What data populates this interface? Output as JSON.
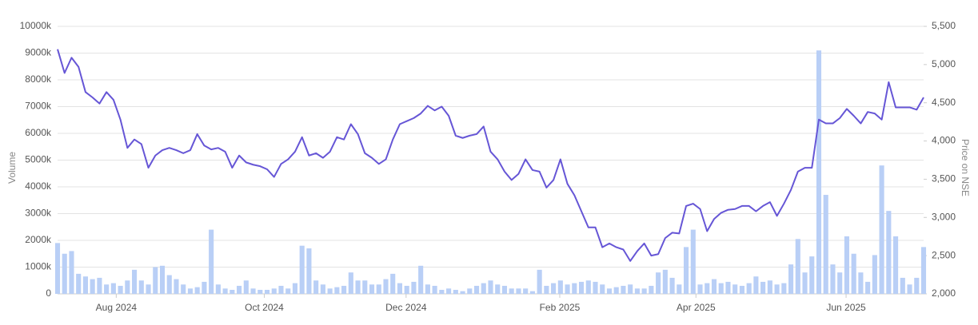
{
  "chart_data": {
    "type": "combo",
    "y_label": "Volume",
    "y2_label": "Price on NSE",
    "xlim": [
      0,
      124
    ],
    "xticks": [
      {
        "value": 8.4,
        "label": "Aug 2024"
      },
      {
        "value": 29.6,
        "label": "Oct 2024"
      },
      {
        "value": 49.9,
        "label": "Dec 2024"
      },
      {
        "value": 71.9,
        "label": "Feb 2025"
      },
      {
        "value": 91.4,
        "label": "Apr 2025"
      },
      {
        "value": 112.9,
        "label": "Jun 2025"
      }
    ],
    "ylim": [
      0,
      10000
    ],
    "yticks": [
      0,
      {
        "value": 1000,
        "label": "1000k"
      },
      {
        "value": 2000,
        "label": "2000k"
      },
      {
        "value": 3000,
        "label": "3000k"
      },
      {
        "value": 4000,
        "label": "4000k"
      },
      {
        "value": 5000,
        "label": "5000k"
      },
      {
        "value": 6000,
        "label": "6000k"
      },
      {
        "value": 7000,
        "label": "7000k"
      },
      {
        "value": 8000,
        "label": "8000k"
      },
      {
        "value": 9000,
        "label": "9000k"
      },
      {
        "value": 10000,
        "label": "10000k"
      }
    ],
    "y2lim": [
      2000,
      5500
    ],
    "y2ticks": [
      {
        "value": 2000,
        "label": "2,000"
      },
      {
        "value": 2500,
        "label": "2,500"
      },
      {
        "value": 3000,
        "label": "3,000"
      },
      {
        "value": 3500,
        "label": "3,500"
      },
      {
        "value": 4000,
        "label": "4,000"
      },
      {
        "value": 4500,
        "label": "4,500"
      },
      {
        "value": 5000,
        "label": "5,000"
      },
      {
        "value": 5500,
        "label": "5,500"
      }
    ],
    "grid": true,
    "series": [
      {
        "type": "bar",
        "color": "#b9cff6",
        "values": [
          1900,
          1500,
          1600,
          750,
          650,
          550,
          600,
          350,
          400,
          300,
          500,
          900,
          500,
          350,
          1000,
          1050,
          700,
          550,
          350,
          200,
          250,
          450,
          2400,
          350,
          200,
          150,
          300,
          500,
          200,
          150,
          150,
          200,
          300,
          200,
          400,
          1800,
          1700,
          500,
          350,
          200,
          250,
          300,
          800,
          500,
          500,
          350,
          350,
          550,
          750,
          400,
          300,
          450,
          1050,
          350,
          300,
          150,
          200,
          150,
          100,
          200,
          300,
          400,
          500,
          350,
          300,
          200,
          200,
          200,
          100,
          900,
          300,
          400,
          500,
          350,
          400,
          450,
          500,
          450,
          350,
          200,
          250,
          300,
          350,
          200,
          200,
          300,
          800,
          900,
          600,
          350,
          1750,
          2400,
          350,
          400,
          550,
          400,
          450,
          350,
          300,
          400,
          650,
          450,
          500,
          350,
          400,
          1100,
          2050,
          800,
          1400,
          9100,
          3700,
          1100,
          800,
          2150,
          1500,
          800,
          450,
          1450,
          4800,
          3100,
          2150,
          600,
          350,
          600,
          1750
        ]
      },
      {
        "type": "line",
        "axis": "y2",
        "color": "#6656d6",
        "values": [
          5200,
          4890,
          5090,
          4970,
          4640,
          4570,
          4490,
          4640,
          4540,
          4280,
          3910,
          4020,
          3960,
          3650,
          3810,
          3880,
          3910,
          3880,
          3840,
          3880,
          4090,
          3940,
          3890,
          3910,
          3860,
          3650,
          3810,
          3720,
          3690,
          3670,
          3630,
          3530,
          3700,
          3760,
          3860,
          4050,
          3810,
          3840,
          3780,
          3860,
          4050,
          4020,
          4220,
          4090,
          3840,
          3780,
          3700,
          3760,
          4020,
          4220,
          4260,
          4300,
          4360,
          4460,
          4400,
          4450,
          4330,
          4070,
          4040,
          4070,
          4090,
          4190,
          3860,
          3760,
          3600,
          3490,
          3570,
          3760,
          3620,
          3600,
          3390,
          3490,
          3760,
          3440,
          3290,
          3080,
          2870,
          2870,
          2610,
          2660,
          2610,
          2580,
          2430,
          2560,
          2660,
          2500,
          2520,
          2730,
          2800,
          2790,
          3150,
          3180,
          3110,
          2820,
          2980,
          3060,
          3100,
          3110,
          3150,
          3150,
          3080,
          3150,
          3200,
          3020,
          3180,
          3360,
          3600,
          3650,
          3650,
          4280,
          4230,
          4230,
          4300,
          4420,
          4330,
          4230,
          4380,
          4360,
          4280,
          4770,
          4440,
          4440,
          4440,
          4410,
          4570
        ]
      }
    ]
  }
}
